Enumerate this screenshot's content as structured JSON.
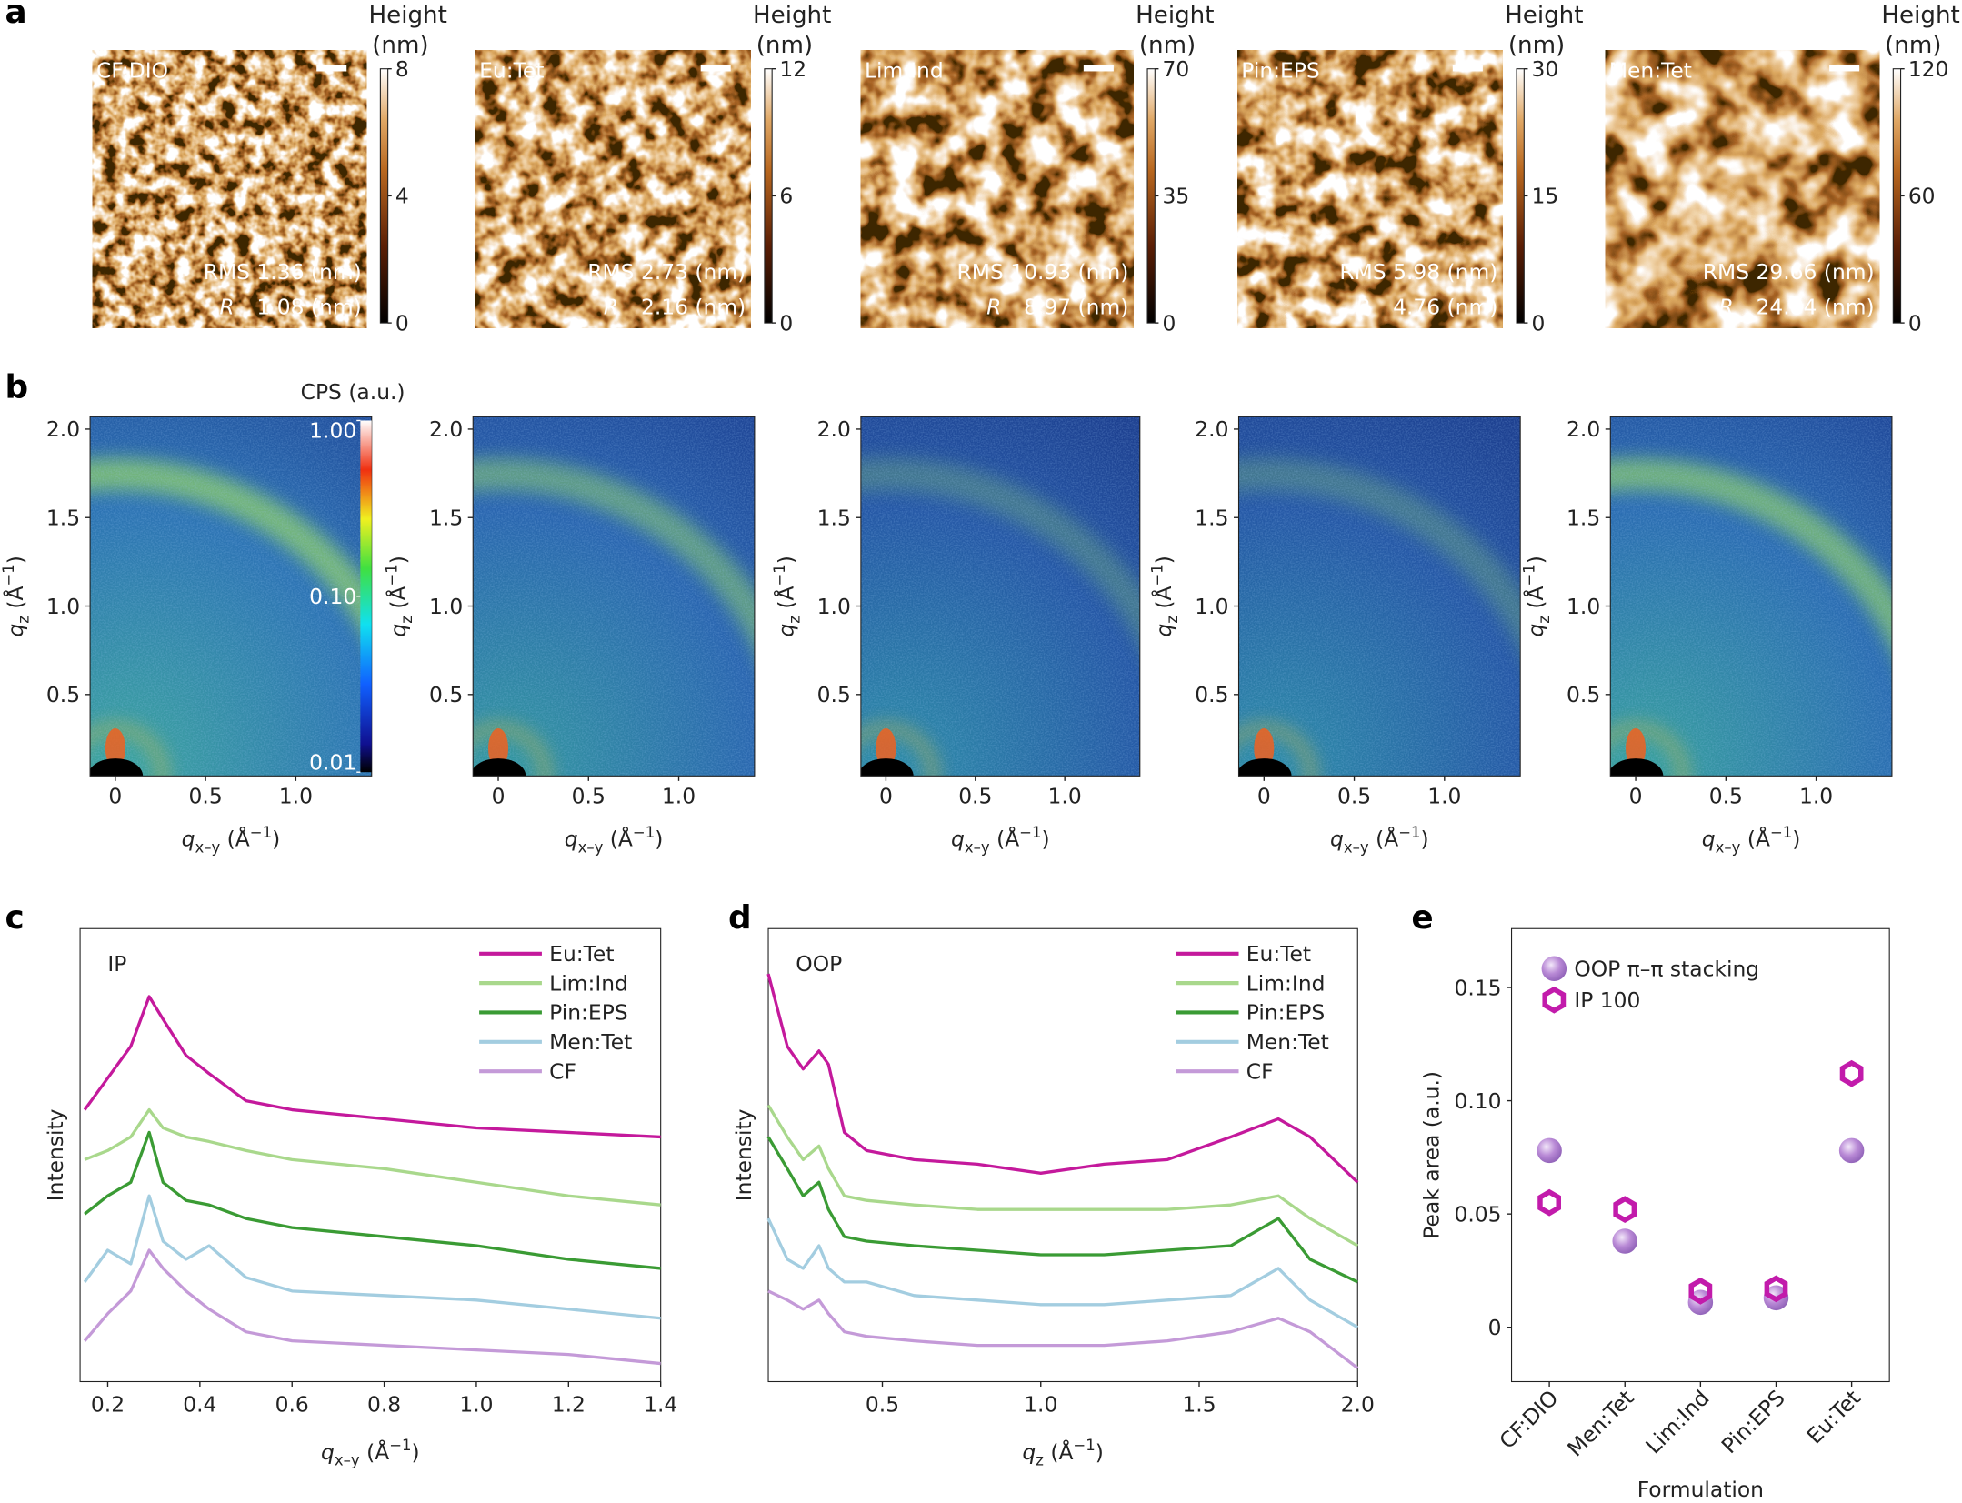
{
  "chart_data": [
    {
      "panel": "a",
      "type": "afm",
      "colorbar_title": "Height",
      "colorbar_unit": "(nm)",
      "ra_symbol": "R",
      "images": [
        {
          "label": "CF:DIO",
          "zlim": [
            0,
            8
          ],
          "zticks": [
            0,
            4,
            8
          ],
          "rms": "RMS 1.36 (nm)",
          "ra": "1.08 (nm)"
        },
        {
          "label": "Eu:Tet",
          "zlim": [
            0,
            12
          ],
          "zticks": [
            0,
            6,
            12
          ],
          "rms": "RMS 2.73 (nm)",
          "ra": "2.16 (nm)"
        },
        {
          "label": "Lim:Ind",
          "zlim": [
            0,
            70
          ],
          "zticks": [
            0,
            35,
            70
          ],
          "rms": "RMS 10.93 (nm)",
          "ra": "8.97 (nm)"
        },
        {
          "label": "Pin:EPS",
          "zlim": [
            0,
            30
          ],
          "zticks": [
            0,
            15,
            30
          ],
          "rms": "RMS 5.98 (nm)",
          "ra": "4.76 (nm)"
        },
        {
          "label": "Men:Tet",
          "zlim": [
            0,
            120
          ],
          "zticks": [
            0,
            60,
            120
          ],
          "rms": "RMS 29.66 (nm)",
          "ra": "24.84 (nm)"
        }
      ]
    },
    {
      "panel": "b",
      "type": "giwaxs",
      "colorbar_title": "CPS (a.u.)",
      "zscale": "log",
      "zlim": [
        0.01,
        1
      ],
      "zticks": [
        {
          "value": 0.01,
          "label": "0.01"
        },
        {
          "value": 0.1,
          "label": "0.10"
        },
        {
          "value": 1,
          "label": "1.00"
        }
      ],
      "xlim": [
        -0.14,
        1.42
      ],
      "ylim": [
        0.04,
        2.07
      ],
      "xticks": [
        0,
        0.5,
        {
          "value": 1,
          "label": "1.0"
        }
      ],
      "yticks": [
        0.5,
        {
          "value": 1,
          "label": "1.0"
        },
        1.5,
        {
          "value": 2,
          "label": "2.0"
        }
      ],
      "xlabel": [
        {
          "text": "q"
        },
        {
          "text": "x–y",
          "shift": "sub"
        },
        {
          "text": " (Å"
        },
        {
          "text": "−1",
          "shift": "sup"
        },
        {
          "text": ")"
        }
      ],
      "ylabel": [
        {
          "text": "q"
        },
        {
          "text": "z",
          "shift": "sub"
        },
        {
          "text": " (Å"
        },
        {
          "text": "−1",
          "shift": "sup"
        },
        {
          "text": ")"
        }
      ]
    },
    {
      "panel": "c",
      "type": "line",
      "annotation": "IP",
      "ylabel": "Intensity",
      "legend": "upper right",
      "xlabel": [
        {
          "text": "q"
        },
        {
          "text": "x–y",
          "shift": "sub"
        },
        {
          "text": " (Å"
        },
        {
          "text": "−1",
          "shift": "sup"
        },
        {
          "text": ")"
        }
      ],
      "xlim": [
        0.14,
        1.4
      ],
      "ylim": [
        0,
        10
      ],
      "xticks": [
        0.2,
        0.4,
        0.6,
        0.8,
        {
          "value": 1,
          "label": "1.0"
        },
        1.2,
        1.4
      ],
      "x": [
        0.15,
        0.2,
        0.25,
        0.29,
        0.32,
        0.37,
        0.42,
        0.5,
        0.6,
        0.8,
        1.0,
        1.2,
        1.4
      ],
      "series": [
        {
          "name": "Eu:Tet",
          "color": "#c4199c",
          "values": [
            6.0,
            6.7,
            7.4,
            8.5,
            8.0,
            7.2,
            6.8,
            6.2,
            6.0,
            5.8,
            5.6,
            5.5,
            5.4
          ]
        },
        {
          "name": "Lim:Ind",
          "color": "#a9d88c",
          "values": [
            4.9,
            5.1,
            5.4,
            6.0,
            5.6,
            5.4,
            5.3,
            5.1,
            4.9,
            4.7,
            4.4,
            4.1,
            3.9
          ]
        },
        {
          "name": "Pin:EPS",
          "color": "#3a9b34",
          "values": [
            3.7,
            4.1,
            4.4,
            5.5,
            4.4,
            4.0,
            3.9,
            3.6,
            3.4,
            3.2,
            3.0,
            2.7,
            2.5
          ]
        },
        {
          "name": "Men:Tet",
          "color": "#a3cde0",
          "values": [
            2.2,
            2.9,
            2.6,
            4.1,
            3.1,
            2.7,
            3.0,
            2.3,
            2.0,
            1.9,
            1.8,
            1.6,
            1.4
          ]
        },
        {
          "name": "CF",
          "color": "#c49ad8",
          "values": [
            0.9,
            1.5,
            2.0,
            2.9,
            2.5,
            2.0,
            1.6,
            1.1,
            0.9,
            0.8,
            0.7,
            0.6,
            0.4
          ]
        }
      ]
    },
    {
      "panel": "d",
      "type": "line",
      "annotation": "OOP",
      "ylabel": "Intensity",
      "legend": "upper right",
      "xlabel": [
        {
          "text": "q"
        },
        {
          "text": "z",
          "shift": "sub"
        },
        {
          "text": " (Å"
        },
        {
          "text": "−1",
          "shift": "sup"
        },
        {
          "text": ")"
        }
      ],
      "xlim": [
        0.14,
        2.0
      ],
      "ylim": [
        0,
        10
      ],
      "xticks": [
        0.5,
        {
          "value": 1,
          "label": "1.0"
        },
        1.5,
        {
          "value": 2,
          "label": "2.0"
        }
      ],
      "x": [
        0.14,
        0.2,
        0.25,
        0.3,
        0.33,
        0.38,
        0.45,
        0.6,
        0.8,
        1.0,
        1.2,
        1.4,
        1.6,
        1.75,
        1.85,
        2.0
      ],
      "series": [
        {
          "name": "Eu:Tet",
          "color": "#c4199c",
          "values": [
            9.0,
            7.4,
            6.9,
            7.3,
            7.0,
            5.5,
            5.1,
            4.9,
            4.8,
            4.6,
            4.8,
            4.9,
            5.4,
            5.8,
            5.4,
            4.4
          ]
        },
        {
          "name": "Lim:Ind",
          "color": "#a9d88c",
          "values": [
            6.1,
            5.4,
            4.9,
            5.2,
            4.7,
            4.1,
            4.0,
            3.9,
            3.8,
            3.8,
            3.8,
            3.8,
            3.9,
            4.1,
            3.6,
            3.0
          ]
        },
        {
          "name": "Pin:EPS",
          "color": "#3a9b34",
          "values": [
            5.4,
            4.7,
            4.1,
            4.4,
            3.8,
            3.2,
            3.1,
            3.0,
            2.9,
            2.8,
            2.8,
            2.9,
            3.0,
            3.6,
            2.7,
            2.2
          ]
        },
        {
          "name": "Men:Tet",
          "color": "#a3cde0",
          "values": [
            3.6,
            2.7,
            2.5,
            3.0,
            2.5,
            2.2,
            2.2,
            1.9,
            1.8,
            1.7,
            1.7,
            1.8,
            1.9,
            2.5,
            1.8,
            1.2
          ]
        },
        {
          "name": "CF",
          "color": "#c49ad8",
          "values": [
            2.0,
            1.8,
            1.6,
            1.8,
            1.5,
            1.1,
            1.0,
            0.9,
            0.8,
            0.8,
            0.8,
            0.9,
            1.1,
            1.4,
            1.1,
            0.3
          ]
        }
      ]
    },
    {
      "panel": "e",
      "type": "scatter",
      "ylabel": "Peak area (a.u.)",
      "xlabel": "Formulation",
      "legend": "upper left",
      "categories": [
        "CF:DIO",
        "Men:Tet",
        "Lim:Ind",
        "Pin:EPS",
        "Eu:Tet"
      ],
      "ylim": [
        -0.024,
        0.176
      ],
      "yticks": [
        0,
        0.05,
        {
          "value": 0.1,
          "label": "0.10"
        },
        0.15
      ],
      "series": [
        {
          "name": "OOP π–π stacking",
          "color": "#b489d4",
          "marker": "sphere",
          "values": [
            0.078,
            0.038,
            0.011,
            0.013,
            0.078
          ]
        },
        {
          "name": "IP 100",
          "color": "#c21bab",
          "marker": "hexagon",
          "values": [
            0.055,
            0.052,
            0.016,
            0.017,
            0.112
          ]
        }
      ]
    }
  ]
}
